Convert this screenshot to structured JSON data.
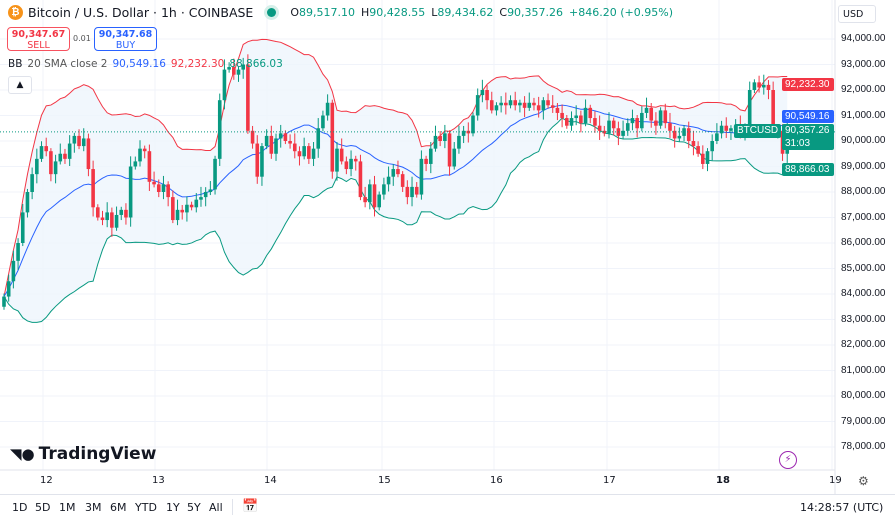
{
  "header": {
    "title": "Bitcoin / U.S. Dollar · 1h · COINBASE",
    "coin_icon": "bitcoin-icon",
    "ohlc": {
      "o_label": "O",
      "o": "89,517.10",
      "h_label": "H",
      "h": "90,428.55",
      "l_label": "L",
      "l": "89,434.62",
      "c_label": "C",
      "c": "90,357.26",
      "change": "+846.20 (+0.95%)"
    }
  },
  "trade": {
    "sell_price": "90,347.67",
    "sell_label": "SELL",
    "spread": "0.01",
    "buy_price": "90,347.68",
    "buy_label": "BUY"
  },
  "indicator": {
    "name": "BB",
    "params": "20 SMA close 2",
    "basis": "90,549.16",
    "upper": "92,232.30",
    "lower": "88,866.03"
  },
  "currency": "USD",
  "price_axis": [
    "94,000.00",
    "93,000.00",
    "92,000.00",
    "91,000.00",
    "90,000.00",
    "89,000.00",
    "88,000.00",
    "87,000.00",
    "86,000.00",
    "85,000.00",
    "84,000.00",
    "83,000.00",
    "82,000.00",
    "81,000.00",
    "80,000.00",
    "79,000.00",
    "78,000.00"
  ],
  "price_tags": {
    "upper": "92,232.30",
    "basis": "90,549.16",
    "last": "90,357.26",
    "countdown": "31:03",
    "lower": "88,866.03",
    "symbol": "BTCUSD"
  },
  "time_axis": [
    "12",
    "13",
    "14",
    "15",
    "16",
    "17",
    "18",
    "19"
  ],
  "logo": "TradingView",
  "toolbar": {
    "ranges": [
      "1D",
      "5D",
      "1M",
      "3M",
      "6M",
      "YTD",
      "1Y",
      "5Y",
      "All"
    ],
    "clock": "14:28:57 (UTC)"
  },
  "colors": {
    "up": "#089981",
    "down": "#f23645",
    "basis": "#2962ff",
    "upper": "#f23645",
    "lower": "#089981",
    "fill": "#eef5fd"
  },
  "chart_data": {
    "type": "candlestick",
    "interval": "1h",
    "ylim": [
      78000,
      94000
    ],
    "first_open": 83500,
    "closes": [
      83900,
      84500,
      85300,
      86000,
      87200,
      88000,
      88700,
      89300,
      89800,
      89600,
      88700,
      89200,
      89500,
      89300,
      89900,
      90200,
      89800,
      90100,
      88900,
      87400,
      87000,
      86900,
      87200,
      86600,
      87100,
      87300,
      87000,
      89000,
      89200,
      89700,
      89600,
      88400,
      88300,
      88000,
      88300,
      87800,
      86900,
      87300,
      87200,
      87500,
      87400,
      87700,
      87800,
      88000,
      88100,
      89300,
      91600,
      92800,
      92900,
      92600,
      92800,
      93000,
      90400,
      89900,
      88600,
      89800,
      90200,
      89500,
      90100,
      90300,
      90000,
      89900,
      89600,
      89400,
      89800,
      89300,
      89700,
      90500,
      91000,
      91500,
      88800,
      89700,
      89200,
      88900,
      89300,
      89200,
      87800,
      87600,
      88300,
      87400,
      87900,
      88300,
      88600,
      88900,
      88700,
      88200,
      87800,
      88200,
      87900,
      89300,
      89100,
      89700,
      90200,
      90000,
      90300,
      89000,
      89700,
      90200,
      90400,
      90300,
      91000,
      91800,
      92000,
      91600,
      91200,
      91400,
      91500,
      91400,
      91600,
      91400,
      91500,
      91300,
      91500,
      91400,
      91200,
      91600,
      91400,
      91300,
      91100,
      90900,
      90600,
      90900,
      91000,
      90700,
      91300,
      90900,
      90600,
      90400,
      90300,
      90800,
      90500,
      90200,
      90400,
      90700,
      90900,
      90500,
      91100,
      91300,
      90800,
      90600,
      91200,
      90700,
      90400,
      90100,
      90200,
      90500,
      90000,
      89800,
      89500,
      89100,
      89600,
      90000,
      90300,
      90600,
      90400,
      90500,
      90600,
      90300,
      90500,
      92000,
      92300,
      92100,
      92200,
      92000,
      90300,
      90400,
      89500,
      90357.26
    ],
    "bollinger": {
      "length": 20,
      "mult": 2,
      "basis_last": 90549.16,
      "upper_last": 92232.3,
      "lower_last": 88866.03
    },
    "last_price": 90357.26
  }
}
